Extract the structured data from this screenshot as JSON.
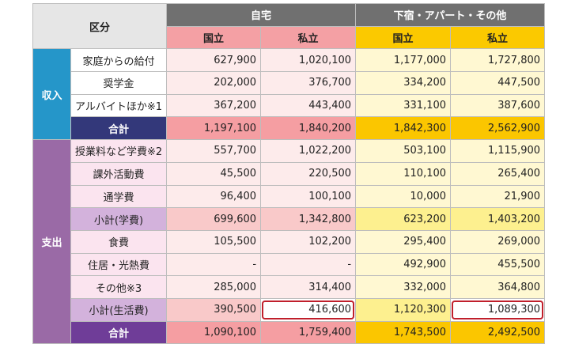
{
  "header": {
    "category": "区分",
    "home": "自宅",
    "boarding": "下宿・アパート・その他",
    "national": "国立",
    "private": "私立"
  },
  "income": {
    "label": "収入",
    "rows": [
      {
        "item": "家庭からの給付",
        "values": [
          "627,900",
          "1,020,100",
          "1,177,000",
          "1,727,800"
        ]
      },
      {
        "item": "奨学金",
        "values": [
          "202,000",
          "376,700",
          "334,200",
          "447,500"
        ]
      },
      {
        "item": "アルバイトほか※1",
        "values": [
          "367,200",
          "443,400",
          "331,100",
          "387,600"
        ]
      }
    ],
    "total": {
      "item": "合計",
      "values": [
        "1,197,100",
        "1,840,200",
        "1,842,300",
        "2,562,900"
      ]
    }
  },
  "expense": {
    "label": "支出",
    "rows": [
      {
        "item": "授業料など学費※2",
        "values": [
          "557,700",
          "1,022,200",
          "503,100",
          "1,115,900"
        ]
      },
      {
        "item": "課外活動費",
        "values": [
          "45,500",
          "220,500",
          "110,100",
          "265,400"
        ]
      },
      {
        "item": "通学費",
        "values": [
          "96,400",
          "100,100",
          "10,000",
          "21,900"
        ]
      },
      {
        "item": "小計(学費)",
        "values": [
          "699,600",
          "1,342,800",
          "623,200",
          "1,403,200"
        ]
      },
      {
        "item": "食費",
        "values": [
          "105,500",
          "102,200",
          "295,400",
          "269,000"
        ]
      },
      {
        "item": "住居・光熱費",
        "values": [
          "-",
          "-",
          "492,900",
          "455,500"
        ]
      },
      {
        "item": "その他※3",
        "values": [
          "285,000",
          "314,400",
          "332,000",
          "364,800"
        ]
      },
      {
        "item": "小計(生活費)",
        "values": [
          "390,500",
          "416,600",
          "1,120,300",
          "1,089,300"
        ]
      }
    ],
    "total": {
      "item": "合計",
      "values": [
        "1,090,100",
        "1,759,400",
        "1,743,500",
        "2,492,500"
      ]
    }
  }
}
